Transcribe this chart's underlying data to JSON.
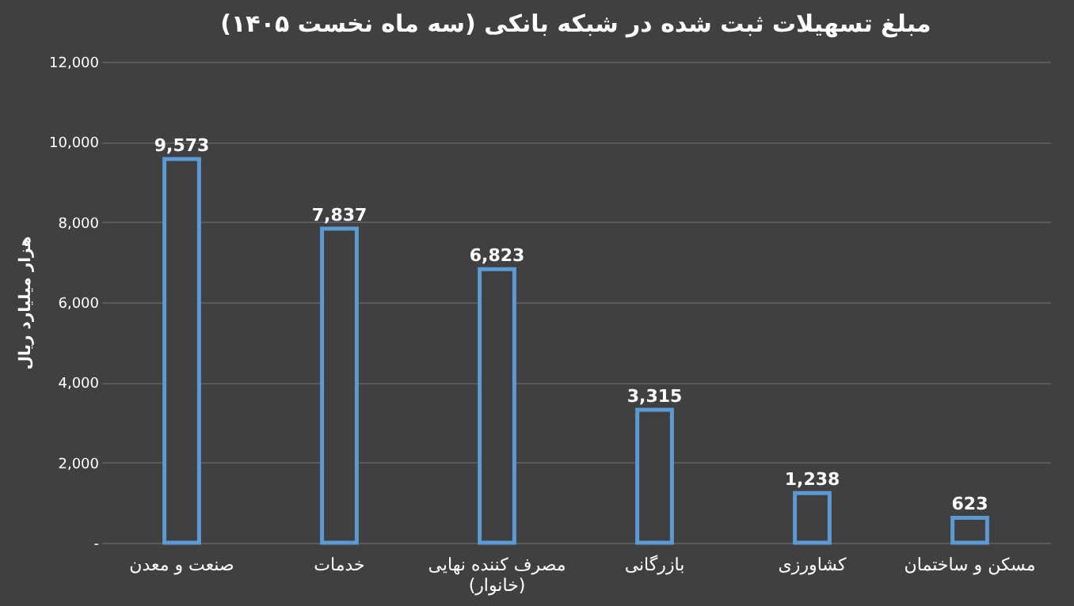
{
  "chart_data": {
    "type": "bar",
    "title": "مبلغ تسهیلات ثبت شده در شبکه بانکی (سه ماه نخست ۱۴۰۵)",
    "ylabel": "هزار میلیارد ریال",
    "categories": [
      "صنعت و معدن",
      "خدمات",
      "مصرف کننده نهایی\n(خانوار)",
      "بازرگانی",
      "کشاورزی",
      "مسکن و ساختمان"
    ],
    "values": [
      9573,
      7837,
      6823,
      3315,
      1238,
      623
    ],
    "value_labels": [
      "9,573",
      "7,837",
      "6,823",
      "3,315",
      "1,238",
      "623"
    ],
    "color": "#5b9bd5",
    "ylim": [
      0,
      12000
    ],
    "yticks": [
      {
        "value": 0,
        "label": "-"
      },
      {
        "value": 2000,
        "label": "2,000"
      },
      {
        "value": 4000,
        "label": "4,000"
      },
      {
        "value": 6000,
        "label": "6,000"
      },
      {
        "value": 8000,
        "label": "8,000"
      },
      {
        "value": 10000,
        "label": "10,000"
      },
      {
        "value": 12000,
        "label": "12,000"
      }
    ],
    "grid": "y"
  }
}
